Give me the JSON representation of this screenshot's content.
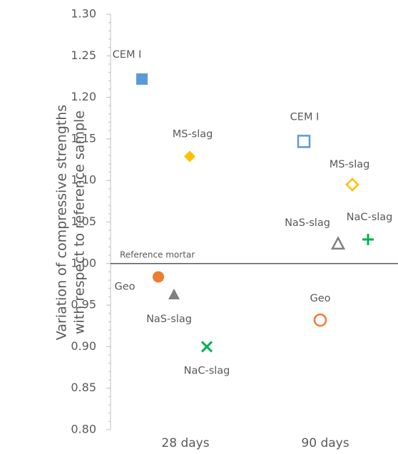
{
  "chart_data": {
    "type": "scatter",
    "y_label": [
      "Variation of compressive strengths",
      "with respect to reference sample"
    ],
    "categories": [
      "28 days",
      "90 days"
    ],
    "filled": [
      true,
      false
    ],
    "series": [
      {
        "name": "CEM I",
        "color": "#5b9bd5",
        "markers": [
          "square",
          "square"
        ],
        "values": [
          1.222,
          1.147
        ]
      },
      {
        "name": "MS-slag",
        "color": "#ffc000",
        "markers": [
          "diamond",
          "diamond"
        ],
        "values": [
          1.129,
          1.095
        ]
      },
      {
        "name": "Geo",
        "color": "#ed7d31",
        "markers": [
          "circle",
          "circle"
        ],
        "values": [
          0.984,
          0.932
        ]
      },
      {
        "name": "NaS-slag",
        "color": "#7f7f7f",
        "markers": [
          "triangle",
          "triangle"
        ],
        "values": [
          0.963,
          1.024
        ]
      },
      {
        "name": "NaC-slag",
        "color": "#00b050",
        "markers": [
          "x",
          "plus"
        ],
        "values": [
          0.9,
          1.029
        ]
      }
    ],
    "reference": {
      "value": 1.0,
      "label": "Reference mortar"
    },
    "ylim": [
      0.8,
      1.3
    ],
    "yminor_step": 0.01,
    "yticks": [
      {
        "value": 0.8,
        "label": "0.80"
      },
      {
        "value": 0.85,
        "label": "0.85"
      },
      {
        "value": 0.9,
        "label": "0.90"
      },
      {
        "value": 0.95,
        "label": "0.95"
      },
      {
        "value": 1.0,
        "label": "1.00"
      },
      {
        "value": 1.05,
        "label": "1.05"
      },
      {
        "value": 1.1,
        "label": "1.10"
      },
      {
        "value": 1.15,
        "label": "1.15"
      },
      {
        "value": 1.2,
        "label": "1.20"
      },
      {
        "value": 1.25,
        "label": "1.25"
      },
      {
        "value": 1.3,
        "label": "1.30"
      }
    ]
  }
}
